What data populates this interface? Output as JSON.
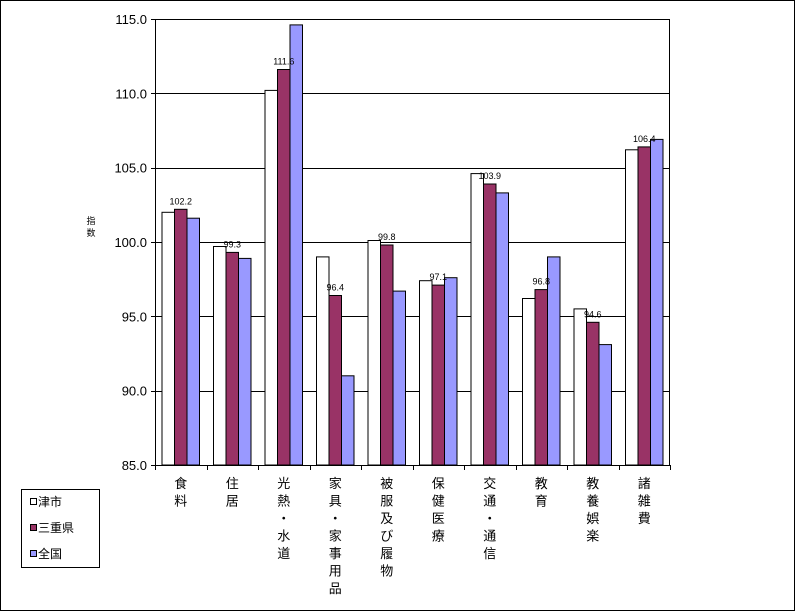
{
  "chart_data": {
    "type": "bar",
    "ylabel": "指数",
    "ylim": [
      85.0,
      115.0
    ],
    "yticks": [
      "85.0",
      "90.0",
      "95.0",
      "100.0",
      "105.0",
      "110.0",
      "115.0"
    ],
    "categories": [
      "食料",
      "住居",
      "光熱・水道",
      "家具・家事用品",
      "被服及び履物",
      "保健医療",
      "交通・通信",
      "教育",
      "教養娯楽",
      "諸雑費"
    ],
    "series": [
      {
        "name": "津市",
        "color": "#ffffff",
        "values": [
          102.0,
          99.7,
          110.2,
          99.0,
          100.1,
          97.4,
          104.6,
          96.2,
          95.5,
          106.2
        ]
      },
      {
        "name": "三重県",
        "color": "#993366",
        "values": [
          102.2,
          99.3,
          111.6,
          96.4,
          99.8,
          97.1,
          103.9,
          96.8,
          94.6,
          106.4
        ]
      },
      {
        "name": "全国",
        "color": "#9999ff",
        "values": [
          101.6,
          98.9,
          114.6,
          91.0,
          96.7,
          97.6,
          103.3,
          99.0,
          93.1,
          106.9
        ]
      }
    ],
    "data_labels": [
      "102.2",
      "99.3",
      "111.6",
      "96.4",
      "99.8",
      "97.1",
      "103.9",
      "96.8",
      "94.6",
      "106.4"
    ],
    "data_label_series": "三重県",
    "grid": true,
    "legend_position": "bottom-left"
  }
}
